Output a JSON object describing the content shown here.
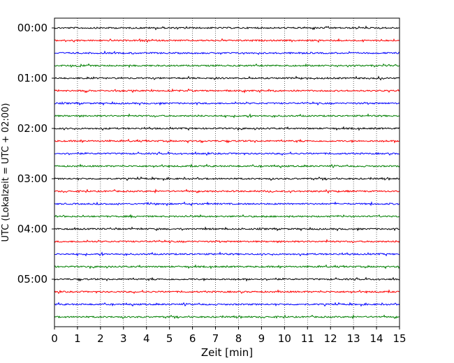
{
  "chart_data": {
    "type": "line",
    "title": "",
    "xlabel": "Zeit  [min]",
    "ylabel": "UTC (Lokalzeit = UTC + 02:00)",
    "xlim": [
      0,
      15
    ],
    "x_ticks": [
      "0",
      "1",
      "2",
      "3",
      "4",
      "5",
      "6",
      "7",
      "8",
      "9",
      "10",
      "11",
      "12",
      "13",
      "14",
      "15"
    ],
    "y_ticks": [
      "00:00",
      "01:00",
      "02:00",
      "03:00",
      "04:00",
      "05:00"
    ],
    "grid": "vertical dotted lines at each minute",
    "trace_interval_min": 15,
    "trace_count": 24,
    "trace_colors": [
      "#000000",
      "#ff0000",
      "#0000ff",
      "#007f00"
    ],
    "trace_start_times_utc": [
      "00:00",
      "00:15",
      "00:30",
      "00:45",
      "01:00",
      "01:15",
      "01:30",
      "01:45",
      "02:00",
      "02:15",
      "02:30",
      "02:45",
      "03:00",
      "03:15",
      "03:30",
      "03:45",
      "04:00",
      "04:15",
      "04:30",
      "04:45",
      "05:00",
      "05:15",
      "05:30",
      "05:45"
    ]
  }
}
